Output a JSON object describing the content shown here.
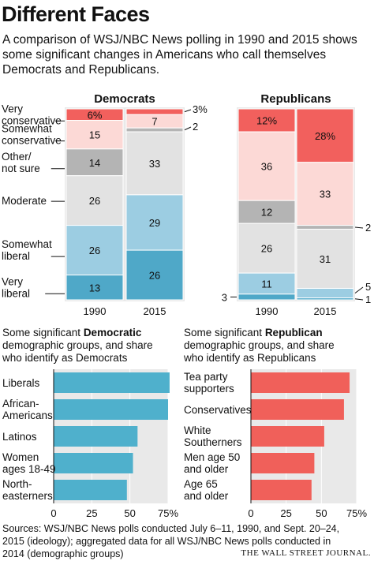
{
  "headline": "Different Faces",
  "subhead": "A comparison of WSJ/NBC News polling in 1990 and 2015 shows some significant changes in Americans who call themselves Democrats and Republicans.",
  "source_note": "Sources: WSJ/NBC News polls conducted July 6–11, 1990, and Sept. 20–24, 2015 (ideology); aggregated data for all WSJ/NBC News polls conducted in 2014 (demographic groups)",
  "credit": "THE WALL STREET JOURNAL.",
  "colors": {
    "very_conservative": "#f2605d",
    "somewhat_conservative": "#fcd9d6",
    "other": "#b4b4b4",
    "moderate": "#e2e2e2",
    "somewhat_liberal": "#9ccde2",
    "very_liberal": "#4fa8c8",
    "dem_bar": "#4fb0cc",
    "rep_bar": "#f0605a"
  },
  "chart_data": [
    {
      "type": "bar",
      "stacked": true,
      "title": "Democrats",
      "categories": [
        "1990",
        "2015"
      ],
      "series": [
        {
          "name": "Very conservative",
          "key": "very_conservative",
          "values": [
            6,
            3
          ],
          "labels": [
            "6%",
            "3%"
          ]
        },
        {
          "name": "Somewhat conservative",
          "key": "somewhat_conservative",
          "values": [
            15,
            7
          ],
          "labels": [
            "15",
            "7"
          ]
        },
        {
          "name": "Other/ not sure",
          "key": "other",
          "values": [
            14,
            2
          ],
          "labels": [
            "14",
            "2"
          ]
        },
        {
          "name": "Moderate",
          "key": "moderate",
          "values": [
            26,
            33
          ],
          "labels": [
            "26",
            "33"
          ]
        },
        {
          "name": "Somewhat liberal",
          "key": "somewhat_liberal",
          "values": [
            26,
            29
          ],
          "labels": [
            "26",
            "29"
          ]
        },
        {
          "name": "Very liberal",
          "key": "very_liberal",
          "values": [
            13,
            26
          ],
          "labels": [
            "13",
            "26"
          ]
        }
      ],
      "legend_labels": [
        {
          "key": "very_conservative",
          "lines": [
            "Very",
            "conservative"
          ]
        },
        {
          "key": "somewhat_conservative",
          "lines": [
            "Somewhat",
            "conservative"
          ]
        },
        {
          "key": "other",
          "lines": [
            "Other/",
            "not sure"
          ]
        },
        {
          "key": "moderate",
          "lines": [
            "Moderate"
          ]
        },
        {
          "key": "somewhat_liberal",
          "lines": [
            "Somewhat",
            "liberal"
          ]
        },
        {
          "key": "very_liberal",
          "lines": [
            "Very",
            "liberal"
          ]
        }
      ]
    },
    {
      "type": "bar",
      "stacked": true,
      "title": "Republicans",
      "categories": [
        "1990",
        "2015"
      ],
      "series": [
        {
          "name": "Very conservative",
          "key": "very_conservative",
          "values": [
            12,
            28
          ],
          "labels": [
            "12%",
            "28%"
          ]
        },
        {
          "name": "Somewhat conservative",
          "key": "somewhat_conservative",
          "values": [
            36,
            33
          ],
          "labels": [
            "36",
            "33"
          ]
        },
        {
          "name": "Other/ not sure",
          "key": "other",
          "values": [
            12,
            2
          ],
          "labels": [
            "12",
            "2"
          ]
        },
        {
          "name": "Moderate",
          "key": "moderate",
          "values": [
            26,
            31
          ],
          "labels": [
            "26",
            "31"
          ]
        },
        {
          "name": "Somewhat liberal",
          "key": "somewhat_liberal",
          "values": [
            11,
            5
          ],
          "labels": [
            "11",
            "5"
          ]
        },
        {
          "name": "Very liberal",
          "key": "very_liberal",
          "values": [
            3,
            1
          ],
          "labels": [
            "3",
            "1"
          ]
        }
      ]
    },
    {
      "type": "bar",
      "orientation": "horizontal",
      "intro": [
        "Some significant ",
        "Democratic",
        " demographic groups, and share who identify as Democrats"
      ],
      "categories": [
        [
          "Liberals"
        ],
        [
          "African-",
          "Americans"
        ],
        [
          "Latinos"
        ],
        [
          "Women",
          "ages 18-49"
        ],
        [
          "North-",
          "easterners"
        ]
      ],
      "values": [
        76,
        75,
        55,
        52,
        48
      ],
      "xlim": [
        0,
        75
      ],
      "xticks": [
        "0",
        "25",
        "50",
        "75%"
      ],
      "color_key": "dem_bar"
    },
    {
      "type": "bar",
      "orientation": "horizontal",
      "intro": [
        "Some significant ",
        "Republican",
        " demographic groups, and share who identify as Republicans"
      ],
      "categories": [
        [
          "Tea party",
          "supporters"
        ],
        [
          "Conservatives"
        ],
        [
          "White",
          "Southerners"
        ],
        [
          "Men age 50",
          "and older"
        ],
        [
          "Age 65",
          "and older"
        ]
      ],
      "values": [
        70,
        66,
        52,
        45,
        43
      ],
      "xlim": [
        0,
        75
      ],
      "xticks": [
        "0",
        "25",
        "50",
        "75%"
      ],
      "color_key": "rep_bar"
    }
  ]
}
